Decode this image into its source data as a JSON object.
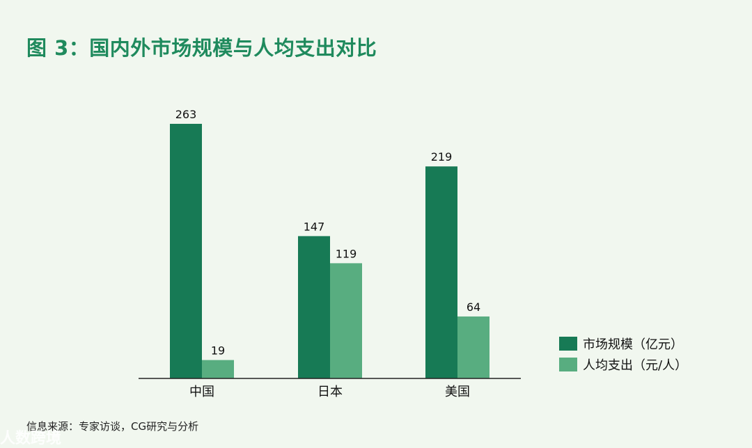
{
  "title": "图 3：国内外市场规模与人均支出对比",
  "source": "信息来源：专家访谈，CG研究与分析",
  "watermark": "人数跨境",
  "colors": {
    "series_market": "#177a55",
    "series_per_capita": "#58ad80",
    "title": "#1f8a5d",
    "background": "#f1f7ef"
  },
  "chart_data": {
    "type": "bar",
    "categories": [
      "中国",
      "日本",
      "美国"
    ],
    "series": [
      {
        "name": "市场规模（亿元）",
        "values": [
          263,
          147,
          219
        ]
      },
      {
        "name": "人均支出（元/人）",
        "values": [
          19,
          119,
          64
        ]
      }
    ],
    "ylim": [
      0,
      263
    ],
    "grid": false,
    "legend": "right"
  }
}
